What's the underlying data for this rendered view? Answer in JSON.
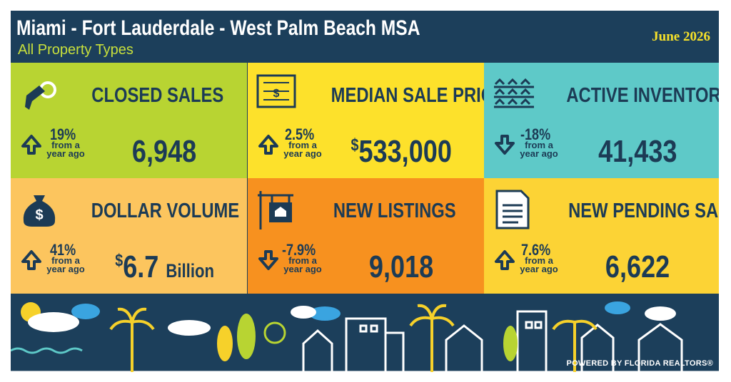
{
  "header": {
    "title": "Miami - Fort Lauderdale - West Palm Beach MSA",
    "subtitle": "All Property Types",
    "date": "June 2026"
  },
  "tiles": [
    {
      "title": "CLOSED SALES",
      "change": "19%",
      "direction": "up",
      "note": "from a year ago",
      "value": "6,948",
      "color": "#b8d432"
    },
    {
      "title": "MEDIAN SALE PRICE",
      "change": "2.5%",
      "direction": "up",
      "note": "from a year ago",
      "prefix": "$",
      "value": "533,000",
      "color": "#fde12b"
    },
    {
      "title": "ACTIVE INVENTORY",
      "change": "-18%",
      "direction": "down",
      "note": "from a year ago",
      "value": "41,433",
      "color": "#5ec9c8"
    },
    {
      "title": "DOLLAR VOLUME",
      "change": "41%",
      "direction": "up",
      "note": "from a year ago",
      "prefix": "$",
      "value": "6.7",
      "suffix": "Billion",
      "color": "#fcc55e"
    },
    {
      "title": "NEW LISTINGS",
      "change": "-7.9%",
      "direction": "down",
      "note": "from a year ago",
      "value": "9,018",
      "color": "#f7911f"
    },
    {
      "title": "NEW PENDING SALES",
      "change": "7.6%",
      "direction": "up",
      "note": "from a year ago",
      "value": "6,622",
      "color": "#fcd335"
    }
  ],
  "footer": {
    "credit": "POWERED BY FLORIDA REALTORS®"
  }
}
